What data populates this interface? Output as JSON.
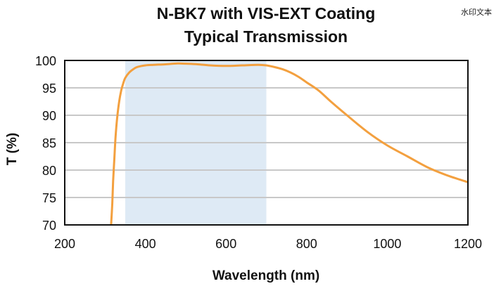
{
  "watermark": "水印文本",
  "chart_data": {
    "type": "line",
    "title": "N-BK7 with VIS-EXT Coating",
    "subtitle": "Typical Transmission",
    "xlabel": "Wavelength (nm)",
    "ylabel": "T (%)",
    "xlim": [
      200,
      1200
    ],
    "ylim": [
      70,
      100
    ],
    "x_ticks": [
      200,
      400,
      600,
      800,
      1000,
      1200
    ],
    "y_ticks": [
      70,
      75,
      80,
      85,
      90,
      95,
      100
    ],
    "grid": "horizontal",
    "highlight_band": {
      "x_start": 350,
      "x_end": 700,
      "color": "#deeaf5"
    },
    "series": [
      {
        "color": "#f3a03f",
        "x": [
          315,
          318,
          320,
          323,
          326,
          330,
          335,
          340,
          345,
          350,
          360,
          370,
          380,
          400,
          420,
          450,
          480,
          500,
          530,
          560,
          600,
          640,
          680,
          700,
          720,
          740,
          760,
          780,
          800,
          830,
          860,
          900,
          950,
          1000,
          1050,
          1100,
          1150,
          1200
        ],
        "y": [
          70,
          74,
          78,
          82,
          86,
          89.5,
          92.5,
          94.5,
          95.8,
          96.8,
          97.8,
          98.4,
          98.8,
          99.1,
          99.2,
          99.3,
          99.45,
          99.4,
          99.3,
          99.1,
          99.0,
          99.1,
          99.2,
          99.1,
          98.8,
          98.4,
          97.8,
          97.0,
          96.0,
          94.5,
          92.5,
          90.0,
          87.0,
          84.5,
          82.5,
          80.5,
          79.0,
          77.8
        ]
      }
    ]
  }
}
